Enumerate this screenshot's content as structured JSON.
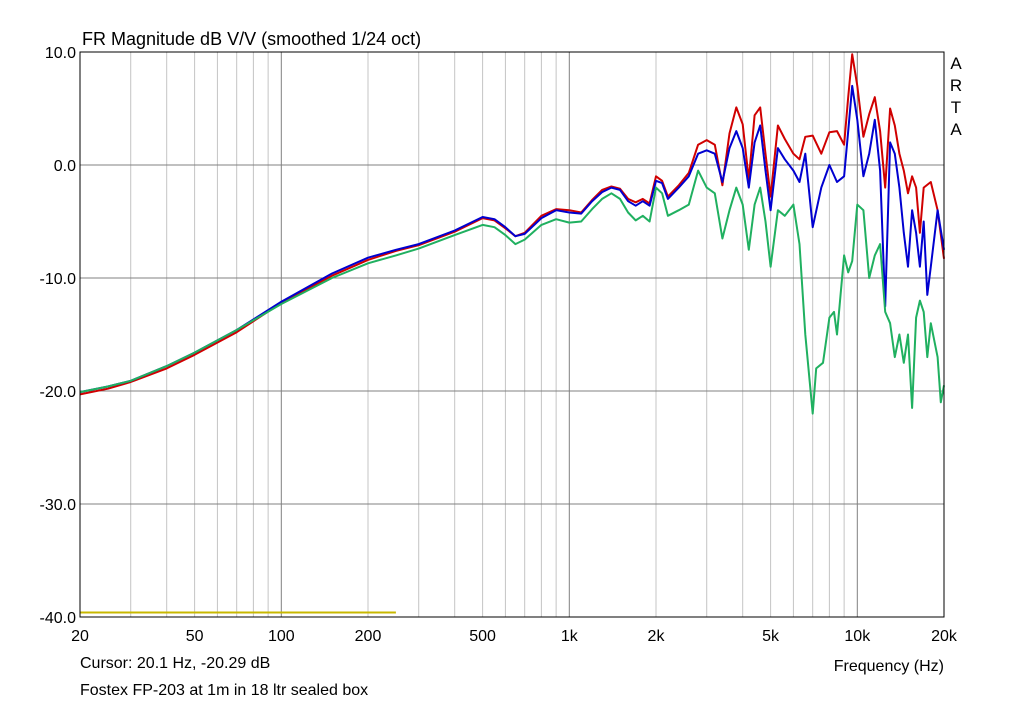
{
  "chart_data": {
    "type": "line",
    "title": "FR Magnitude dB V/V (smoothed 1/24 oct)",
    "xlabel": "Frequency (Hz)",
    "ylabel": "",
    "xscale": "log",
    "xlim": [
      20,
      20000
    ],
    "ylim": [
      -40,
      10
    ],
    "x_ticks": [
      20,
      50,
      100,
      200,
      500,
      1000,
      2000,
      5000,
      10000,
      20000
    ],
    "x_tick_labels": [
      "20",
      "50",
      "100",
      "200",
      "500",
      "1k",
      "2k",
      "5k",
      "10k",
      "20k"
    ],
    "y_ticks": [
      10,
      0,
      -10,
      -20,
      -30,
      -40
    ],
    "y_tick_labels": [
      "10.0",
      "0.0",
      "-10.0",
      "-20.0",
      "-30.0",
      "-40.0"
    ],
    "grid": true,
    "brand": [
      "A",
      "R",
      "T",
      "A"
    ],
    "series": [
      {
        "color": "#d00000",
        "points": [
          [
            20,
            -20.3
          ],
          [
            25,
            -19.8
          ],
          [
            30,
            -19.2
          ],
          [
            40,
            -18.0
          ],
          [
            50,
            -16.8
          ],
          [
            70,
            -14.8
          ],
          [
            100,
            -12.2
          ],
          [
            150,
            -9.8
          ],
          [
            200,
            -8.4
          ],
          [
            250,
            -7.6
          ],
          [
            300,
            -7.1
          ],
          [
            400,
            -5.9
          ],
          [
            500,
            -4.7
          ],
          [
            550,
            -4.9
          ],
          [
            600,
            -5.6
          ],
          [
            650,
            -6.3
          ],
          [
            700,
            -6.0
          ],
          [
            800,
            -4.5
          ],
          [
            900,
            -3.9
          ],
          [
            1000,
            -4.0
          ],
          [
            1100,
            -4.2
          ],
          [
            1200,
            -3.1
          ],
          [
            1300,
            -2.2
          ],
          [
            1400,
            -1.9
          ],
          [
            1500,
            -2.1
          ],
          [
            1600,
            -3.0
          ],
          [
            1700,
            -3.3
          ],
          [
            1800,
            -3.0
          ],
          [
            1900,
            -3.4
          ],
          [
            2000,
            -1.0
          ],
          [
            2100,
            -1.4
          ],
          [
            2200,
            -2.8
          ],
          [
            2400,
            -1.8
          ],
          [
            2600,
            -0.7
          ],
          [
            2800,
            1.8
          ],
          [
            3000,
            2.2
          ],
          [
            3200,
            1.8
          ],
          [
            3400,
            -1.8
          ],
          [
            3600,
            2.8
          ],
          [
            3800,
            5.1
          ],
          [
            4000,
            3.6
          ],
          [
            4200,
            -1.3
          ],
          [
            4400,
            4.4
          ],
          [
            4600,
            5.1
          ],
          [
            4800,
            1.0
          ],
          [
            5000,
            -2.8
          ],
          [
            5300,
            3.5
          ],
          [
            5600,
            2.3
          ],
          [
            6000,
            1.0
          ],
          [
            6300,
            0.5
          ],
          [
            6600,
            2.5
          ],
          [
            7000,
            2.6
          ],
          [
            7500,
            1.0
          ],
          [
            8000,
            2.9
          ],
          [
            8500,
            3.0
          ],
          [
            9000,
            1.8
          ],
          [
            9300,
            6.0
          ],
          [
            9600,
            9.8
          ],
          [
            10000,
            7.0
          ],
          [
            10500,
            2.5
          ],
          [
            11000,
            4.5
          ],
          [
            11500,
            6.0
          ],
          [
            12000,
            3.0
          ],
          [
            12500,
            -2.0
          ],
          [
            13000,
            5.0
          ],
          [
            13500,
            3.5
          ],
          [
            14000,
            1.0
          ],
          [
            14500,
            -0.5
          ],
          [
            15000,
            -2.5
          ],
          [
            15500,
            -1.0
          ],
          [
            16000,
            -2.0
          ],
          [
            16500,
            -6.0
          ],
          [
            17000,
            -2.0
          ],
          [
            18000,
            -1.5
          ],
          [
            19000,
            -4.0
          ],
          [
            20000,
            -8.3
          ]
        ]
      },
      {
        "color": "#0000d0",
        "points": [
          [
            20,
            -20.1
          ],
          [
            25,
            -19.6
          ],
          [
            30,
            -19.1
          ],
          [
            40,
            -17.8
          ],
          [
            50,
            -16.6
          ],
          [
            70,
            -14.6
          ],
          [
            100,
            -12.1
          ],
          [
            150,
            -9.6
          ],
          [
            200,
            -8.2
          ],
          [
            250,
            -7.5
          ],
          [
            300,
            -7.0
          ],
          [
            400,
            -5.8
          ],
          [
            500,
            -4.6
          ],
          [
            550,
            -4.8
          ],
          [
            600,
            -5.5
          ],
          [
            650,
            -6.3
          ],
          [
            700,
            -6.1
          ],
          [
            800,
            -4.7
          ],
          [
            900,
            -4.0
          ],
          [
            1000,
            -4.2
          ],
          [
            1100,
            -4.3
          ],
          [
            1200,
            -3.2
          ],
          [
            1300,
            -2.4
          ],
          [
            1400,
            -2.0
          ],
          [
            1500,
            -2.2
          ],
          [
            1600,
            -3.2
          ],
          [
            1700,
            -3.6
          ],
          [
            1800,
            -3.2
          ],
          [
            1900,
            -3.6
          ],
          [
            2000,
            -1.4
          ],
          [
            2100,
            -1.6
          ],
          [
            2200,
            -3.0
          ],
          [
            2400,
            -2.0
          ],
          [
            2600,
            -1.0
          ],
          [
            2800,
            1.0
          ],
          [
            3000,
            1.3
          ],
          [
            3200,
            1.0
          ],
          [
            3400,
            -1.5
          ],
          [
            3600,
            1.5
          ],
          [
            3800,
            3.0
          ],
          [
            4000,
            1.5
          ],
          [
            4200,
            -2.0
          ],
          [
            4400,
            2.0
          ],
          [
            4600,
            3.5
          ],
          [
            4800,
            -0.5
          ],
          [
            5000,
            -4.0
          ],
          [
            5300,
            1.5
          ],
          [
            5600,
            0.5
          ],
          [
            6000,
            -0.5
          ],
          [
            6300,
            -1.5
          ],
          [
            6600,
            1.0
          ],
          [
            7000,
            -5.5
          ],
          [
            7500,
            -2.0
          ],
          [
            8000,
            0.0
          ],
          [
            8500,
            -1.5
          ],
          [
            9000,
            -1.0
          ],
          [
            9300,
            3.0
          ],
          [
            9600,
            7.0
          ],
          [
            10000,
            4.0
          ],
          [
            10500,
            -1.0
          ],
          [
            11000,
            1.0
          ],
          [
            11500,
            4.0
          ],
          [
            12000,
            -0.5
          ],
          [
            12500,
            -12.5
          ],
          [
            13000,
            2.0
          ],
          [
            13500,
            1.0
          ],
          [
            14000,
            -2.0
          ],
          [
            14500,
            -6.0
          ],
          [
            15000,
            -9.0
          ],
          [
            15500,
            -4.0
          ],
          [
            16000,
            -6.0
          ],
          [
            16500,
            -9.0
          ],
          [
            17000,
            -5.0
          ],
          [
            17500,
            -11.5
          ],
          [
            18000,
            -9.0
          ],
          [
            19000,
            -4.0
          ],
          [
            20000,
            -7.5
          ]
        ]
      },
      {
        "color": "#20b060",
        "points": [
          [
            20,
            -20.1
          ],
          [
            25,
            -19.6
          ],
          [
            30,
            -19.1
          ],
          [
            40,
            -17.8
          ],
          [
            50,
            -16.6
          ],
          [
            70,
            -14.6
          ],
          [
            100,
            -12.3
          ],
          [
            150,
            -10.0
          ],
          [
            200,
            -8.7
          ],
          [
            250,
            -8.0
          ],
          [
            300,
            -7.4
          ],
          [
            400,
            -6.2
          ],
          [
            500,
            -5.3
          ],
          [
            550,
            -5.5
          ],
          [
            600,
            -6.2
          ],
          [
            650,
            -7.0
          ],
          [
            700,
            -6.6
          ],
          [
            800,
            -5.3
          ],
          [
            900,
            -4.8
          ],
          [
            1000,
            -5.1
          ],
          [
            1100,
            -5.0
          ],
          [
            1200,
            -3.9
          ],
          [
            1300,
            -3.0
          ],
          [
            1400,
            -2.5
          ],
          [
            1500,
            -3.0
          ],
          [
            1600,
            -4.2
          ],
          [
            1700,
            -4.9
          ],
          [
            1800,
            -4.5
          ],
          [
            1900,
            -5.0
          ],
          [
            2000,
            -2.0
          ],
          [
            2100,
            -2.5
          ],
          [
            2200,
            -4.5
          ],
          [
            2400,
            -4.0
          ],
          [
            2600,
            -3.5
          ],
          [
            2800,
            -0.5
          ],
          [
            3000,
            -2.0
          ],
          [
            3200,
            -2.5
          ],
          [
            3400,
            -6.5
          ],
          [
            3600,
            -4.0
          ],
          [
            3800,
            -2.0
          ],
          [
            4000,
            -3.5
          ],
          [
            4200,
            -7.5
          ],
          [
            4400,
            -3.5
          ],
          [
            4600,
            -2.0
          ],
          [
            4800,
            -5.0
          ],
          [
            5000,
            -9.0
          ],
          [
            5300,
            -4.0
          ],
          [
            5600,
            -4.5
          ],
          [
            6000,
            -3.5
          ],
          [
            6300,
            -7.0
          ],
          [
            6600,
            -15.0
          ],
          [
            7000,
            -22.0
          ],
          [
            7200,
            -18.0
          ],
          [
            7600,
            -17.5
          ],
          [
            8000,
            -13.5
          ],
          [
            8300,
            -13.0
          ],
          [
            8500,
            -15.0
          ],
          [
            9000,
            -8.0
          ],
          [
            9300,
            -9.5
          ],
          [
            9600,
            -8.5
          ],
          [
            10000,
            -3.5
          ],
          [
            10500,
            -4.0
          ],
          [
            11000,
            -10.0
          ],
          [
            11500,
            -8.0
          ],
          [
            12000,
            -7.0
          ],
          [
            12500,
            -13.0
          ],
          [
            13000,
            -14.0
          ],
          [
            13500,
            -17.0
          ],
          [
            14000,
            -15.0
          ],
          [
            14500,
            -17.5
          ],
          [
            15000,
            -15.0
          ],
          [
            15500,
            -21.5
          ],
          [
            16000,
            -13.5
          ],
          [
            16500,
            -12.0
          ],
          [
            17000,
            -13.0
          ],
          [
            17500,
            -17.0
          ],
          [
            18000,
            -14.0
          ],
          [
            19000,
            -17.0
          ],
          [
            19500,
            -21.0
          ],
          [
            20000,
            -19.5
          ]
        ]
      },
      {
        "color": "#c8b800",
        "points": [
          [
            20,
            -39.6
          ],
          [
            250,
            -39.6
          ]
        ]
      }
    ]
  },
  "cursor_text": "Cursor: 20.1 Hz, -20.29 dB",
  "caption": "Fostex FP-203 at 1m in 18 ltr sealed box"
}
